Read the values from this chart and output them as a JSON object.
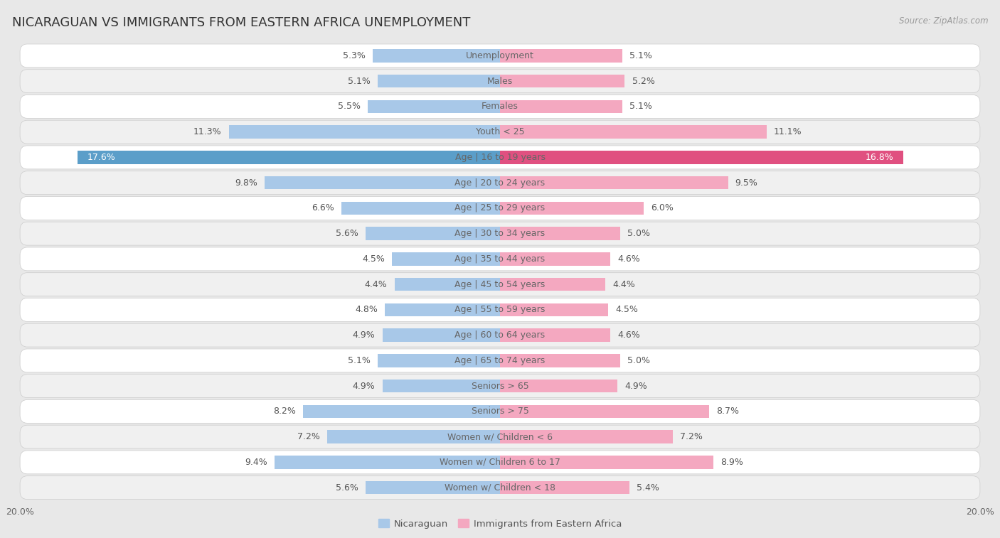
{
  "title": "NICARAGUAN VS IMMIGRANTS FROM EASTERN AFRICA UNEMPLOYMENT",
  "source": "Source: ZipAtlas.com",
  "categories": [
    "Unemployment",
    "Males",
    "Females",
    "Youth < 25",
    "Age | 16 to 19 years",
    "Age | 20 to 24 years",
    "Age | 25 to 29 years",
    "Age | 30 to 34 years",
    "Age | 35 to 44 years",
    "Age | 45 to 54 years",
    "Age | 55 to 59 years",
    "Age | 60 to 64 years",
    "Age | 65 to 74 years",
    "Seniors > 65",
    "Seniors > 75",
    "Women w/ Children < 6",
    "Women w/ Children 6 to 17",
    "Women w/ Children < 18"
  ],
  "nicaraguan": [
    5.3,
    5.1,
    5.5,
    11.3,
    17.6,
    9.8,
    6.6,
    5.6,
    4.5,
    4.4,
    4.8,
    4.9,
    5.1,
    4.9,
    8.2,
    7.2,
    9.4,
    5.6
  ],
  "eastern_africa": [
    5.1,
    5.2,
    5.1,
    11.1,
    16.8,
    9.5,
    6.0,
    5.0,
    4.6,
    4.4,
    4.5,
    4.6,
    5.0,
    4.9,
    8.7,
    7.2,
    8.9,
    5.4
  ],
  "nicaraguan_color": "#a8c8e8",
  "eastern_africa_color": "#f4a8c0",
  "highlight_nicaraguan_color": "#5b9ec9",
  "highlight_eastern_africa_color": "#e05080",
  "bg_color": "#e8e8e8",
  "row_bg_white": "#ffffff",
  "row_bg_light": "#f0f0f0",
  "legend_nicaraguan": "Nicaraguan",
  "legend_eastern_africa": "Immigrants from Eastern Africa",
  "xlim": 20.0,
  "bar_height": 0.52,
  "label_fontsize": 9,
  "category_fontsize": 9,
  "title_fontsize": 13,
  "value_label_color": "#555555",
  "category_label_color": "#666666"
}
